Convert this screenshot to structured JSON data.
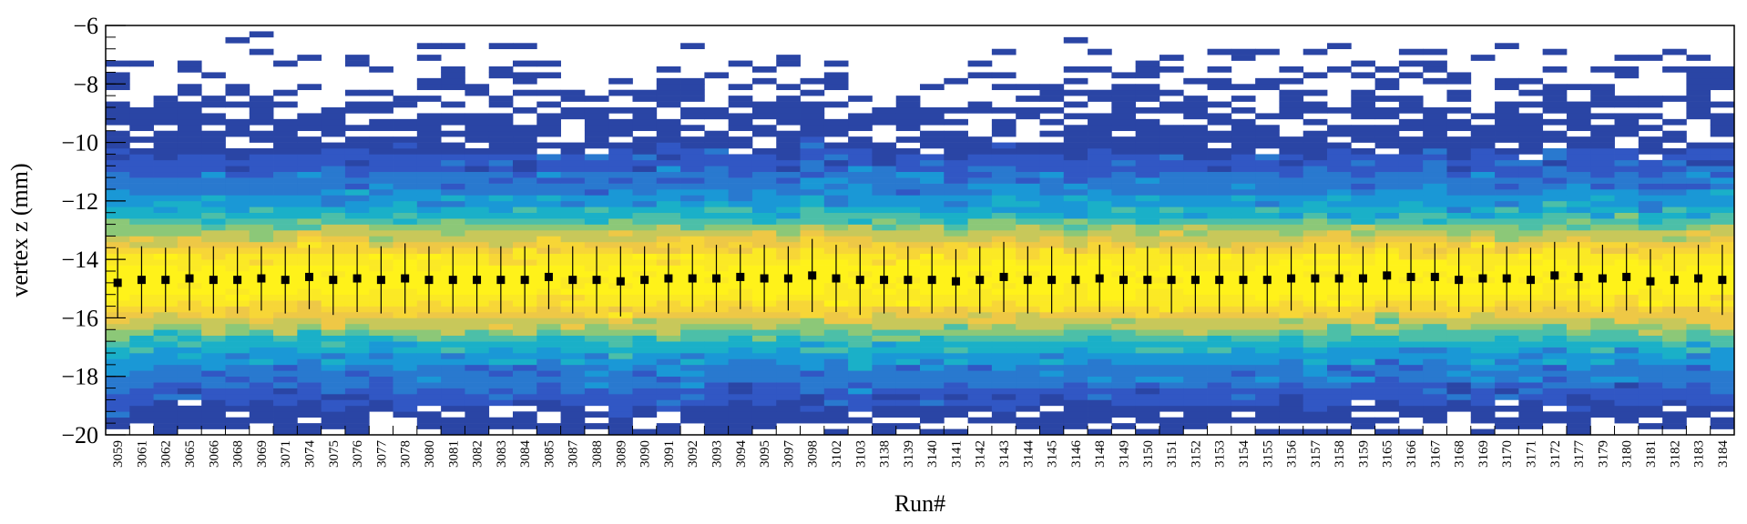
{
  "chart_data": {
    "type": "heatmap",
    "title": "",
    "xlabel": "Run#",
    "ylabel": "vertex z (mm)",
    "ylim": [
      -20,
      -6
    ],
    "yticks": [
      -20,
      -18,
      -16,
      -14,
      -12,
      -10,
      -8,
      -6
    ],
    "grid": false,
    "legend": "none",
    "categories": [
      "3059",
      "3061",
      "3062",
      "3065",
      "3066",
      "3068",
      "3069",
      "3071",
      "3074",
      "3075",
      "3076",
      "3077",
      "3078",
      "3080",
      "3081",
      "3082",
      "3083",
      "3084",
      "3085",
      "3087",
      "3088",
      "3089",
      "3090",
      "3091",
      "3092",
      "3093",
      "3094",
      "3095",
      "3097",
      "3098",
      "3102",
      "3103",
      "3138",
      "3139",
      "3140",
      "3141",
      "3142",
      "3143",
      "3144",
      "3145",
      "3146",
      "3148",
      "3149",
      "3150",
      "3151",
      "3152",
      "3153",
      "3154",
      "3155",
      "3156",
      "3157",
      "3158",
      "3159",
      "3165",
      "3166",
      "3167",
      "3168",
      "3169",
      "3170",
      "3171",
      "3172",
      "3177",
      "3179",
      "3180",
      "3181",
      "3182",
      "3183",
      "3184"
    ],
    "series": [
      {
        "type": "points-with-errors",
        "mean": [
          -14.8,
          -14.7,
          -14.7,
          -14.65,
          -14.7,
          -14.7,
          -14.65,
          -14.7,
          -14.6,
          -14.7,
          -14.65,
          -14.7,
          -14.65,
          -14.7,
          -14.7,
          -14.7,
          -14.7,
          -14.7,
          -14.6,
          -14.7,
          -14.7,
          -14.75,
          -14.7,
          -14.65,
          -14.65,
          -14.65,
          -14.6,
          -14.65,
          -14.65,
          -14.55,
          -14.65,
          -14.7,
          -14.7,
          -14.7,
          -14.7,
          -14.75,
          -14.7,
          -14.6,
          -14.7,
          -14.7,
          -14.7,
          -14.65,
          -14.7,
          -14.7,
          -14.7,
          -14.7,
          -14.7,
          -14.7,
          -14.7,
          -14.65,
          -14.65,
          -14.65,
          -14.65,
          -14.55,
          -14.6,
          -14.6,
          -14.7,
          -14.65,
          -14.65,
          -14.7,
          -14.55,
          -14.6,
          -14.65,
          -14.6,
          -14.75,
          -14.7,
          -14.65,
          -14.7
        ],
        "rms": [
          1.2,
          1.15,
          1.1,
          1.1,
          1.15,
          1.15,
          1.1,
          1.15,
          1.1,
          1.2,
          1.15,
          1.15,
          1.2,
          1.15,
          1.15,
          1.15,
          1.15,
          1.15,
          1.1,
          1.15,
          1.15,
          1.2,
          1.15,
          1.2,
          1.15,
          1.15,
          1.1,
          1.15,
          1.1,
          1.25,
          1.15,
          1.2,
          1.15,
          1.15,
          1.15,
          1.1,
          1.15,
          1.2,
          1.15,
          1.15,
          1.1,
          1.15,
          1.15,
          1.15,
          1.15,
          1.15,
          1.15,
          1.15,
          1.15,
          1.1,
          1.2,
          1.15,
          1.1,
          1.1,
          1.15,
          1.15,
          1.1,
          1.15,
          1.1,
          1.1,
          1.15,
          1.2,
          1.15,
          1.15,
          1.1,
          1.15,
          1.15,
          1.2
        ]
      }
    ],
    "colors": {
      "palette": [
        "#2a45a5",
        "#3157c4",
        "#2979cf",
        "#1a98d6",
        "#1ab0c8",
        "#4cbfa8",
        "#8cc878",
        "#c8c85a",
        "#eec846",
        "#f7d637",
        "#fbe925",
        "#fff21a"
      ],
      "marker": "#000000"
    }
  }
}
